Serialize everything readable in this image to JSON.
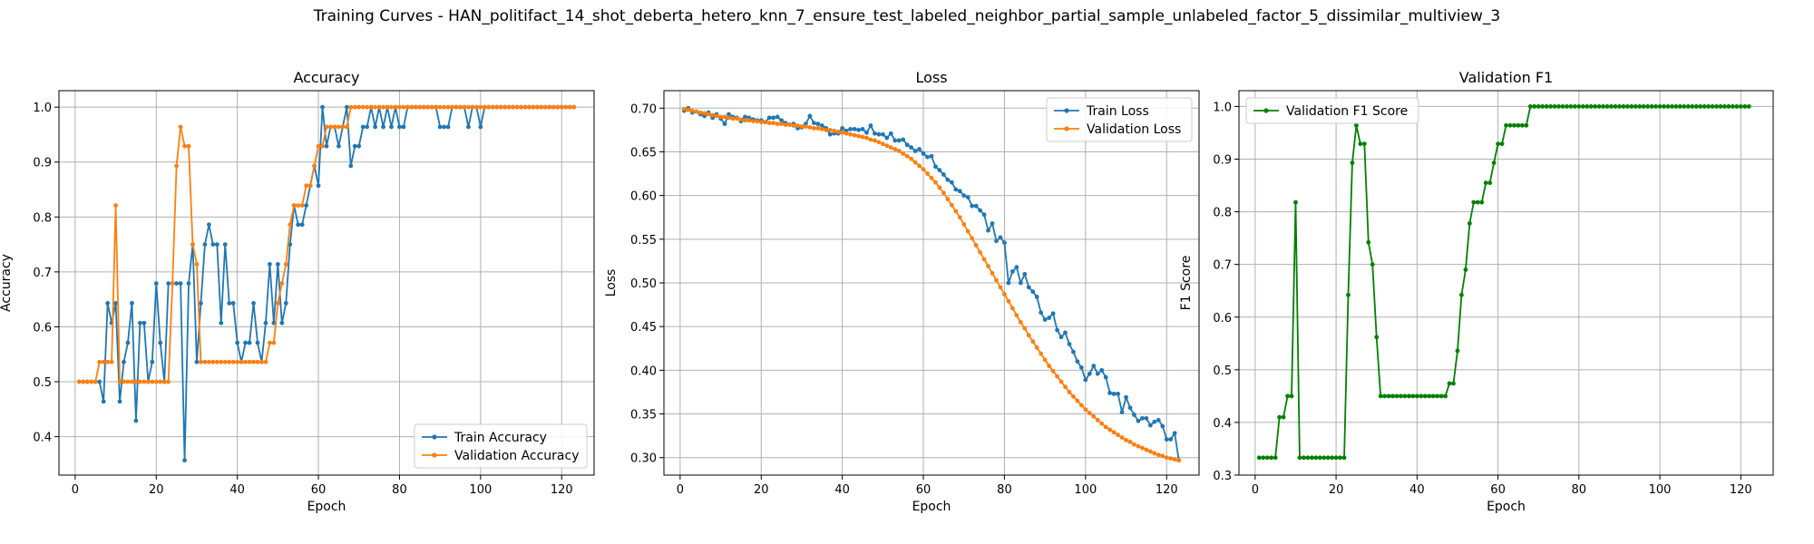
{
  "suptitle": "Training Curves - HAN_politifact_14_shot_deberta_hetero_knn_7_ensure_test_labeled_neighbor_partial_sample_unlabeled_factor_5_dissimilar_multiview_3",
  "colors": {
    "blue": "#1f77b4",
    "orange": "#ff7f0e",
    "green": "#008000",
    "grid": "#b0b0b0"
  },
  "chart_data": [
    {
      "type": "line",
      "title": "Accuracy",
      "xlabel": "Epoch",
      "ylabel": "Accuracy",
      "xlim": [
        -4,
        128
      ],
      "ylim": [
        0.33,
        1.03
      ],
      "xticks": [
        0,
        20,
        40,
        60,
        80,
        100,
        120
      ],
      "yticks": [
        0.4,
        0.5,
        0.6,
        0.7,
        0.8,
        0.9,
        1.0
      ],
      "grid": true,
      "legend": "lower-right",
      "series": [
        {
          "name": "Train Accuracy",
          "color": "#1f77b4",
          "values": [
            0.5,
            0.5,
            0.5,
            0.5,
            0.5,
            0.5,
            0.464,
            0.643,
            0.607,
            0.643,
            0.464,
            0.536,
            0.571,
            0.643,
            0.429,
            0.607,
            0.607,
            0.5,
            0.536,
            0.679,
            0.571,
            0.5,
            0.679,
            0.679,
            0.679,
            0.679,
            0.357,
            0.679,
            0.75,
            0.536,
            0.643,
            0.75,
            0.786,
            0.75,
            0.75,
            0.607,
            0.75,
            0.643,
            0.643,
            0.571,
            0.536,
            0.571,
            0.571,
            0.643,
            0.571,
            0.536,
            0.607,
            0.714,
            0.607,
            0.714,
            0.607,
            0.643,
            0.75,
            0.821,
            0.786,
            0.786,
            0.821,
            0.857,
            0.893,
            0.857,
            1.0,
            0.929,
            0.964,
            0.964,
            0.929,
            0.964,
            1.0,
            0.893,
            0.929,
            0.929,
            0.964,
            0.964,
            1.0,
            0.964,
            1.0,
            0.964,
            1.0,
            0.964,
            1.0,
            0.964,
            0.964,
            1.0,
            1.0,
            1.0,
            1.0,
            1.0,
            1.0,
            1.0,
            1.0,
            0.964,
            0.964,
            0.964,
            1.0,
            1.0,
            1.0,
            1.0,
            0.964,
            1.0,
            1.0,
            0.964,
            1.0,
            1.0,
            1.0,
            1.0,
            1.0,
            1.0,
            1.0,
            1.0,
            1.0,
            1.0,
            1.0,
            1.0,
            1.0,
            1.0,
            1.0,
            1.0,
            1.0,
            1.0,
            1.0,
            1.0,
            1.0,
            1.0,
            1.0
          ]
        },
        {
          "name": "Validation Accuracy",
          "color": "#ff7f0e",
          "values": [
            0.5,
            0.5,
            0.5,
            0.5,
            0.5,
            0.536,
            0.536,
            0.536,
            0.536,
            0.821,
            0.5,
            0.5,
            0.5,
            0.5,
            0.5,
            0.5,
            0.5,
            0.5,
            0.5,
            0.5,
            0.5,
            0.5,
            0.5,
            0.679,
            0.893,
            0.964,
            0.929,
            0.929,
            0.75,
            0.714,
            0.536,
            0.536,
            0.536,
            0.536,
            0.536,
            0.536,
            0.536,
            0.536,
            0.536,
            0.536,
            0.536,
            0.536,
            0.536,
            0.536,
            0.536,
            0.536,
            0.536,
            0.571,
            0.571,
            0.643,
            0.679,
            0.714,
            0.786,
            0.821,
            0.821,
            0.821,
            0.857,
            0.857,
            0.893,
            0.929,
            0.929,
            0.964,
            0.964,
            0.964,
            0.964,
            0.964,
            0.964,
            1.0,
            1.0,
            1.0,
            1.0,
            1.0,
            1.0,
            1.0,
            1.0,
            1.0,
            1.0,
            1.0,
            1.0,
            1.0,
            1.0,
            1.0,
            1.0,
            1.0,
            1.0,
            1.0,
            1.0,
            1.0,
            1.0,
            1.0,
            1.0,
            1.0,
            1.0,
            1.0,
            1.0,
            1.0,
            1.0,
            1.0,
            1.0,
            1.0,
            1.0,
            1.0,
            1.0,
            1.0,
            1.0,
            1.0,
            1.0,
            1.0,
            1.0,
            1.0,
            1.0,
            1.0,
            1.0,
            1.0,
            1.0,
            1.0,
            1.0,
            1.0,
            1.0,
            1.0,
            1.0,
            1.0,
            1.0
          ]
        }
      ]
    },
    {
      "type": "line",
      "title": "Loss",
      "xlabel": "Epoch",
      "ylabel": "Loss",
      "xlim": [
        -4,
        128
      ],
      "ylim": [
        0.28,
        0.72
      ],
      "xticks": [
        0,
        20,
        40,
        60,
        80,
        100,
        120
      ],
      "yticks": [
        0.3,
        0.35,
        0.4,
        0.45,
        0.5,
        0.55,
        0.6,
        0.65,
        0.7
      ],
      "ytick_labels": [
        "0.30",
        "0.35",
        "0.40",
        "0.45",
        "0.50",
        "0.55",
        "0.60",
        "0.65",
        "0.70"
      ],
      "grid": true,
      "legend": "upper-right",
      "series": [
        {
          "name": "Train Loss",
          "color": "#1f77b4",
          "values": [
            0.697,
            0.7,
            0.695,
            0.696,
            0.693,
            0.691,
            0.695,
            0.689,
            0.693,
            0.688,
            0.682,
            0.693,
            0.69,
            0.689,
            0.685,
            0.69,
            0.689,
            0.687,
            0.686,
            0.686,
            0.684,
            0.689,
            0.689,
            0.69,
            0.686,
            0.683,
            0.681,
            0.682,
            0.677,
            0.678,
            0.682,
            0.691,
            0.683,
            0.682,
            0.68,
            0.677,
            0.67,
            0.671,
            0.671,
            0.677,
            0.674,
            0.676,
            0.676,
            0.675,
            0.676,
            0.672,
            0.68,
            0.671,
            0.67,
            0.67,
            0.666,
            0.671,
            0.663,
            0.663,
            0.664,
            0.658,
            0.655,
            0.651,
            0.653,
            0.648,
            0.644,
            0.645,
            0.633,
            0.629,
            0.624,
            0.618,
            0.615,
            0.607,
            0.605,
            0.6,
            0.598,
            0.588,
            0.588,
            0.583,
            0.578,
            0.56,
            0.568,
            0.548,
            0.552,
            0.546,
            0.5,
            0.513,
            0.518,
            0.5,
            0.51,
            0.495,
            0.49,
            0.484,
            0.466,
            0.458,
            0.46,
            0.465,
            0.446,
            0.438,
            0.443,
            0.43,
            0.421,
            0.41,
            0.403,
            0.389,
            0.396,
            0.405,
            0.396,
            0.4,
            0.392,
            0.374,
            0.373,
            0.373,
            0.352,
            0.369,
            0.357,
            0.349,
            0.342,
            0.345,
            0.345,
            0.337,
            0.341,
            0.343,
            0.336,
            0.321,
            0.321,
            0.328,
            0.297
          ]
        },
        {
          "name": "Validation Loss",
          "color": "#ff7f0e",
          "values": [
            0.699,
            0.698,
            0.697,
            0.696,
            0.695,
            0.694,
            0.693,
            0.692,
            0.691,
            0.69,
            0.69,
            0.689,
            0.688,
            0.688,
            0.687,
            0.686,
            0.686,
            0.685,
            0.685,
            0.684,
            0.684,
            0.683,
            0.683,
            0.682,
            0.682,
            0.681,
            0.681,
            0.68,
            0.68,
            0.679,
            0.679,
            0.678,
            0.677,
            0.677,
            0.676,
            0.675,
            0.675,
            0.674,
            0.673,
            0.672,
            0.671,
            0.67,
            0.669,
            0.668,
            0.667,
            0.666,
            0.664,
            0.663,
            0.661,
            0.659,
            0.657,
            0.655,
            0.653,
            0.651,
            0.648,
            0.645,
            0.642,
            0.638,
            0.634,
            0.63,
            0.625,
            0.62,
            0.615,
            0.609,
            0.603,
            0.596,
            0.589,
            0.582,
            0.575,
            0.567,
            0.559,
            0.551,
            0.543,
            0.535,
            0.527,
            0.519,
            0.511,
            0.503,
            0.495,
            0.487,
            0.479,
            0.471,
            0.463,
            0.455,
            0.448,
            0.44,
            0.433,
            0.426,
            0.419,
            0.412,
            0.405,
            0.399,
            0.393,
            0.387,
            0.381,
            0.375,
            0.37,
            0.365,
            0.36,
            0.355,
            0.351,
            0.347,
            0.343,
            0.339,
            0.335,
            0.332,
            0.329,
            0.326,
            0.323,
            0.32,
            0.318,
            0.315,
            0.313,
            0.311,
            0.309,
            0.307,
            0.305,
            0.303,
            0.302,
            0.3,
            0.299,
            0.298,
            0.297
          ]
        }
      ]
    },
    {
      "type": "line",
      "title": "Validation F1",
      "xlabel": "Epoch",
      "ylabel": "F1 Score",
      "xlim": [
        -4,
        128
      ],
      "ylim": [
        0.3,
        1.03
      ],
      "xticks": [
        0,
        20,
        40,
        60,
        80,
        100,
        120
      ],
      "yticks": [
        0.3,
        0.4,
        0.5,
        0.6,
        0.7,
        0.8,
        0.9,
        1.0
      ],
      "grid": true,
      "legend": "upper-left",
      "series": [
        {
          "name": "Validation F1 Score",
          "color": "#008000",
          "values": [
            0.333,
            0.333,
            0.333,
            0.333,
            0.333,
            0.41,
            0.41,
            0.45,
            0.45,
            0.818,
            0.333,
            0.333,
            0.333,
            0.333,
            0.333,
            0.333,
            0.333,
            0.333,
            0.333,
            0.333,
            0.333,
            0.333,
            0.642,
            0.893,
            0.964,
            0.929,
            0.929,
            0.742,
            0.7,
            0.562,
            0.45,
            0.45,
            0.45,
            0.45,
            0.45,
            0.45,
            0.45,
            0.45,
            0.45,
            0.45,
            0.45,
            0.45,
            0.45,
            0.45,
            0.45,
            0.45,
            0.45,
            0.474,
            0.474,
            0.536,
            0.642,
            0.69,
            0.778,
            0.818,
            0.818,
            0.818,
            0.855,
            0.855,
            0.893,
            0.929,
            0.929,
            0.964,
            0.964,
            0.964,
            0.964,
            0.964,
            0.964,
            1.0,
            1.0,
            1.0,
            1.0,
            1.0,
            1.0,
            1.0,
            1.0,
            1.0,
            1.0,
            1.0,
            1.0,
            1.0,
            1.0,
            1.0,
            1.0,
            1.0,
            1.0,
            1.0,
            1.0,
            1.0,
            1.0,
            1.0,
            1.0,
            1.0,
            1.0,
            1.0,
            1.0,
            1.0,
            1.0,
            1.0,
            1.0,
            1.0,
            1.0,
            1.0,
            1.0,
            1.0,
            1.0,
            1.0,
            1.0,
            1.0,
            1.0,
            1.0,
            1.0,
            1.0,
            1.0,
            1.0,
            1.0,
            1.0,
            1.0,
            1.0,
            1.0,
            1.0,
            1.0,
            1.0
          ]
        }
      ]
    }
  ]
}
